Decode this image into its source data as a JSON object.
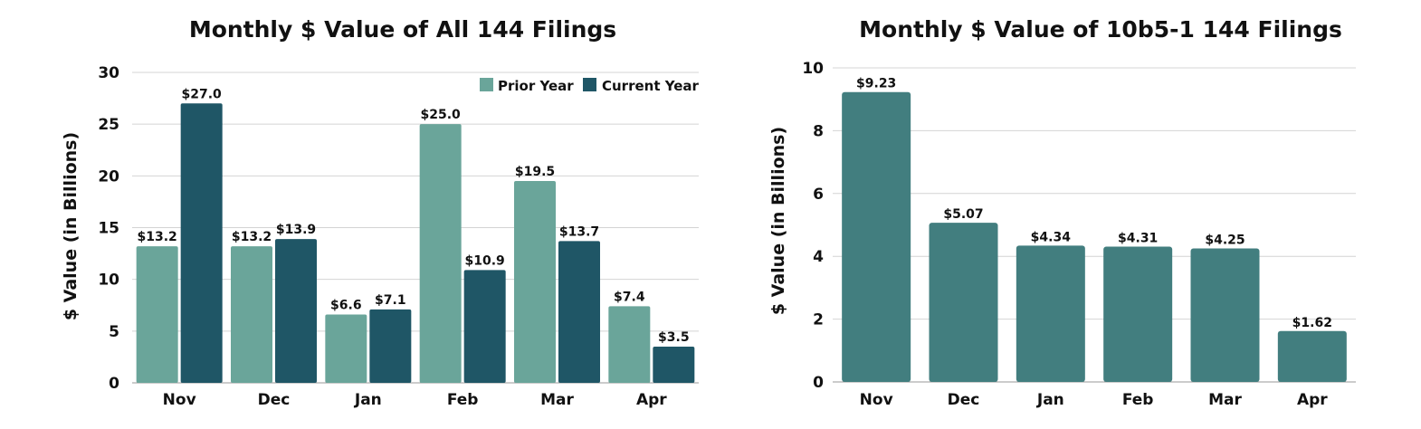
{
  "colors": {
    "prior_year": "#6aa59a",
    "current_year": "#1f5666",
    "single": "#427e7f"
  },
  "chart_data": [
    {
      "type": "bar",
      "title": "Monthly $ Value of All 144 Filings",
      "ylabel": "$ Value (in Billions)",
      "xlabel": "",
      "categories": [
        "Nov",
        "Dec",
        "Jan",
        "Feb",
        "Mar",
        "Apr"
      ],
      "ylim": [
        0,
        30
      ],
      "yticks": [
        "0",
        "5",
        "10",
        "15",
        "20",
        "25",
        "30"
      ],
      "grid": true,
      "legend": "top-right",
      "series": [
        {
          "name": "Prior Year",
          "values": [
            13.2,
            13.2,
            6.6,
            25.0,
            19.5,
            7.4
          ],
          "labels": [
            "$13.2",
            "$13.2",
            "$6.6",
            "$25.0",
            "$19.5",
            "$7.4"
          ]
        },
        {
          "name": "Current Year",
          "values": [
            27.0,
            13.9,
            7.1,
            10.9,
            13.7,
            3.5
          ],
          "labels": [
            "$27.0",
            "$13.9",
            "$7.1",
            "$10.9",
            "$13.7",
            "$3.5"
          ]
        }
      ]
    },
    {
      "type": "bar",
      "title": "Monthly $ Value of 10b5-1 144 Filings",
      "ylabel": "$ Value (in Billions)",
      "xlabel": "",
      "categories": [
        "Nov",
        "Dec",
        "Jan",
        "Feb",
        "Mar",
        "Apr"
      ],
      "ylim": [
        0,
        10
      ],
      "yticks": [
        "0",
        "2",
        "4",
        "6",
        "8",
        "10"
      ],
      "grid": true,
      "series": [
        {
          "values": [
            9.23,
            5.07,
            4.34,
            4.31,
            4.25,
            1.62
          ],
          "labels": [
            "$9.23",
            "$5.07",
            "$4.34",
            "$4.31",
            "$4.25",
            "$1.62"
          ]
        }
      ]
    }
  ]
}
